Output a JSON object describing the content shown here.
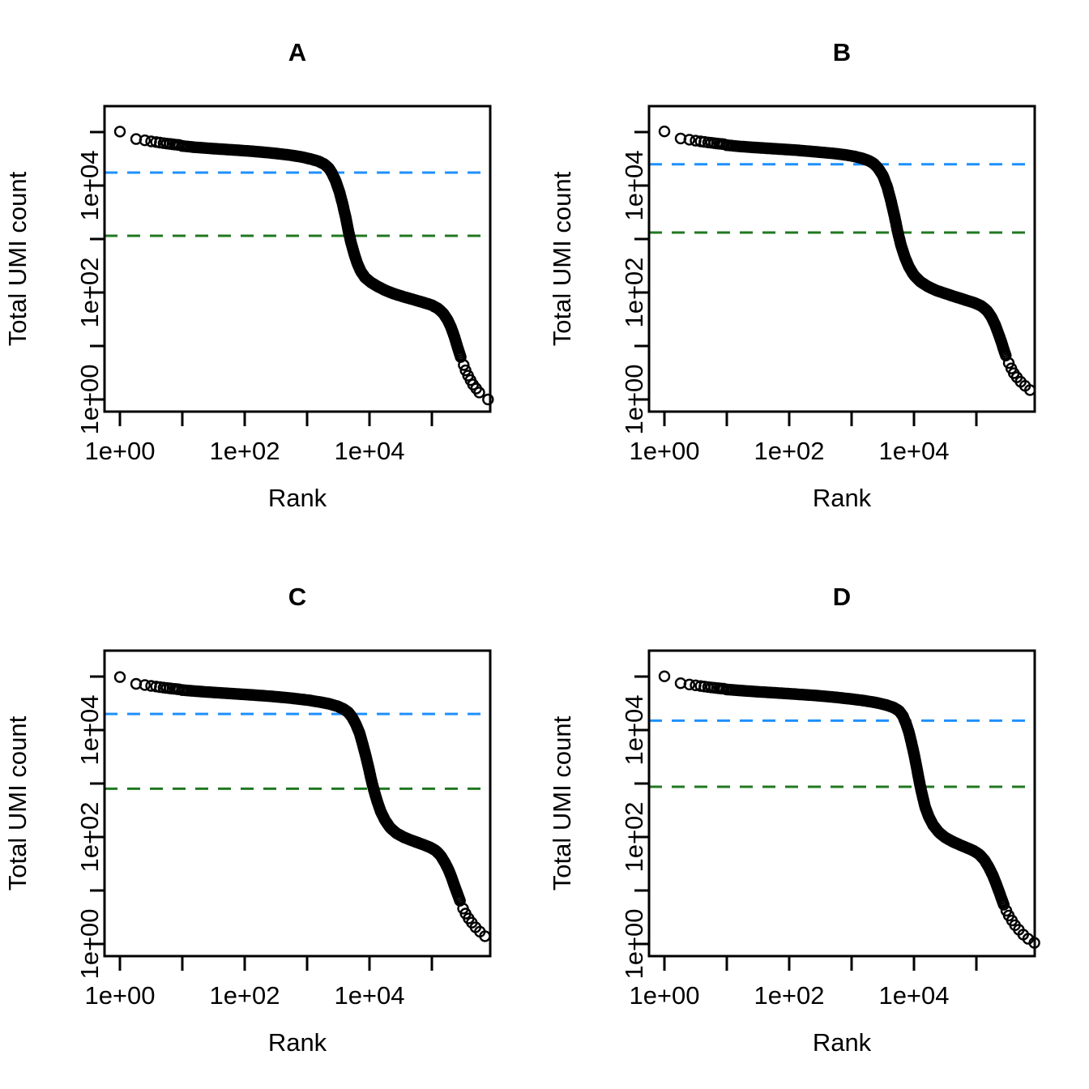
{
  "figure": {
    "description": "Four barcode rank plots (knee plots) of total UMI count versus barcode rank on log-log axes, panels A-D, each with a dashed knee line (blue) and dashed inflection line (green)."
  },
  "chart_data": {
    "type": "scatter",
    "scale": "log-log",
    "marker": "open-circle",
    "xlabel": "Rank",
    "ylabel": "Total UMI count",
    "x_ticks": [
      {
        "L": 0,
        "label": "1e+00"
      },
      {
        "L": 1,
        "label": ""
      },
      {
        "L": 2,
        "label": "1e+02"
      },
      {
        "L": 3,
        "label": ""
      },
      {
        "L": 4,
        "label": "1e+04"
      },
      {
        "L": 5,
        "label": ""
      }
    ],
    "y_ticks": [
      {
        "L": 5,
        "label": ""
      },
      {
        "L": 4,
        "label": "1e+04"
      },
      {
        "L": 3,
        "label": ""
      },
      {
        "L": 2,
        "label": "1e+02"
      },
      {
        "L": 1,
        "label": ""
      },
      {
        "L": 0,
        "label": "1e+00"
      }
    ],
    "style": {
      "knee_color": "#1E90FF",
      "inflection_color": "#217821",
      "point_color": "#000000",
      "knee_line_style": "dashed",
      "inflection_line_style": "dashed"
    },
    "panels": [
      {
        "label": "A",
        "knee": 17500,
        "inflection": 1150,
        "head": [
          [
            0,
            102000
          ],
          [
            0.26,
            74000
          ],
          [
            0.4,
            70000
          ],
          [
            0.5,
            67000
          ],
          [
            0.58,
            65000
          ],
          [
            0.64,
            63500
          ],
          [
            0.7,
            62000
          ],
          [
            0.75,
            61000
          ],
          [
            0.8,
            60000
          ],
          [
            0.84,
            59200
          ],
          [
            0.88,
            58500
          ],
          [
            0.92,
            57800
          ],
          [
            0.95,
            57200
          ]
        ],
        "body": [
          [
            1.0,
            55000
          ],
          [
            1.2,
            52000
          ],
          [
            1.5,
            49000
          ],
          [
            1.8,
            46500
          ],
          [
            2.1,
            44000
          ],
          [
            2.4,
            41000
          ],
          [
            2.7,
            37500
          ],
          [
            2.9,
            34500
          ],
          [
            3.05,
            31500
          ],
          [
            3.18,
            28500
          ],
          [
            3.28,
            25000
          ],
          [
            3.35,
            21000
          ],
          [
            3.4,
            17000
          ],
          [
            3.46,
            12000
          ],
          [
            3.52,
            7500
          ],
          [
            3.57,
            4500
          ],
          [
            3.62,
            2500
          ],
          [
            3.66,
            1450
          ],
          [
            3.7,
            900
          ],
          [
            3.75,
            550
          ],
          [
            3.8,
            360
          ],
          [
            3.86,
            250
          ],
          [
            3.93,
            190
          ],
          [
            4.02,
            155
          ],
          [
            4.13,
            130
          ],
          [
            4.25,
            110
          ],
          [
            4.4,
            94
          ],
          [
            4.55,
            83
          ],
          [
            4.7,
            74
          ],
          [
            4.85,
            66
          ],
          [
            5.0,
            58
          ],
          [
            5.1,
            50
          ],
          [
            5.18,
            41
          ],
          [
            5.25,
            31
          ],
          [
            5.31,
            22
          ],
          [
            5.36,
            15
          ],
          [
            5.4,
            10.5
          ],
          [
            5.44,
            7.5
          ],
          [
            5.47,
            5.8
          ]
        ],
        "tail": [
          [
            5.51,
            4.4
          ],
          [
            5.54,
            3.5
          ],
          [
            5.58,
            2.8
          ],
          [
            5.62,
            2.3
          ],
          [
            5.66,
            1.9
          ],
          [
            5.71,
            1.6
          ],
          [
            5.76,
            1.35
          ],
          [
            5.9,
            1.0
          ]
        ]
      },
      {
        "label": "B",
        "knee": 25000,
        "inflection": 1320,
        "head": [
          [
            0,
            103000
          ],
          [
            0.26,
            76000
          ],
          [
            0.4,
            72000
          ],
          [
            0.5,
            69000
          ],
          [
            0.58,
            67000
          ],
          [
            0.64,
            65500
          ],
          [
            0.7,
            64000
          ],
          [
            0.75,
            63000
          ],
          [
            0.8,
            62000
          ],
          [
            0.84,
            61200
          ],
          [
            0.88,
            60500
          ],
          [
            0.92,
            59800
          ],
          [
            0.95,
            59300
          ]
        ],
        "body": [
          [
            1.0,
            57000
          ],
          [
            1.2,
            54000
          ],
          [
            1.5,
            51000
          ],
          [
            1.8,
            48500
          ],
          [
            2.1,
            46000
          ],
          [
            2.4,
            43000
          ],
          [
            2.7,
            40000
          ],
          [
            2.9,
            37500
          ],
          [
            3.05,
            35000
          ],
          [
            3.18,
            32000
          ],
          [
            3.28,
            29000
          ],
          [
            3.35,
            26000
          ],
          [
            3.42,
            21500
          ],
          [
            3.5,
            15500
          ],
          [
            3.57,
            9500
          ],
          [
            3.63,
            5200
          ],
          [
            3.69,
            2600
          ],
          [
            3.74,
            1350
          ],
          [
            3.79,
            780
          ],
          [
            3.85,
            470
          ],
          [
            3.92,
            300
          ],
          [
            4.0,
            210
          ],
          [
            4.1,
            160
          ],
          [
            4.22,
            130
          ],
          [
            4.35,
            110
          ],
          [
            4.5,
            96
          ],
          [
            4.65,
            84
          ],
          [
            4.8,
            74
          ],
          [
            4.97,
            64
          ],
          [
            5.08,
            56
          ],
          [
            5.17,
            46
          ],
          [
            5.24,
            35
          ],
          [
            5.3,
            25
          ],
          [
            5.35,
            17.5
          ],
          [
            5.4,
            12
          ],
          [
            5.44,
            8.5
          ],
          [
            5.48,
            6.2
          ]
        ],
        "tail": [
          [
            5.52,
            4.8
          ],
          [
            5.56,
            3.8
          ],
          [
            5.6,
            3.1
          ],
          [
            5.65,
            2.6
          ],
          [
            5.71,
            2.15
          ],
          [
            5.78,
            1.8
          ],
          [
            5.86,
            1.5
          ]
        ]
      },
      {
        "label": "C",
        "knee": 20000,
        "inflection": 800,
        "head": [
          [
            0,
            98000
          ],
          [
            0.26,
            73000
          ],
          [
            0.4,
            69500
          ],
          [
            0.5,
            67000
          ],
          [
            0.58,
            65000
          ],
          [
            0.64,
            63500
          ],
          [
            0.7,
            62200
          ],
          [
            0.75,
            61200
          ],
          [
            0.8,
            60300
          ],
          [
            0.84,
            59500
          ],
          [
            0.88,
            58800
          ],
          [
            0.92,
            58200
          ],
          [
            0.95,
            57700
          ]
        ],
        "body": [
          [
            1.0,
            56000
          ],
          [
            1.2,
            53500
          ],
          [
            1.5,
            50500
          ],
          [
            1.8,
            48000
          ],
          [
            2.1,
            45500
          ],
          [
            2.4,
            43000
          ],
          [
            2.7,
            40000
          ],
          [
            3.0,
            36500
          ],
          [
            3.2,
            33500
          ],
          [
            3.35,
            31000
          ],
          [
            3.48,
            28000
          ],
          [
            3.58,
            25000
          ],
          [
            3.66,
            21500
          ],
          [
            3.72,
            17500
          ],
          [
            3.78,
            13000
          ],
          [
            3.84,
            8800
          ],
          [
            3.89,
            5500
          ],
          [
            3.94,
            3300
          ],
          [
            3.99,
            1900
          ],
          [
            4.03,
            1150
          ],
          [
            4.07,
            760
          ],
          [
            4.12,
            480
          ],
          [
            4.18,
            300
          ],
          [
            4.25,
            205
          ],
          [
            4.33,
            150
          ],
          [
            4.43,
            118
          ],
          [
            4.55,
            99
          ],
          [
            4.68,
            86
          ],
          [
            4.82,
            75
          ],
          [
            4.96,
            65
          ],
          [
            5.06,
            56
          ],
          [
            5.14,
            45
          ],
          [
            5.21,
            33
          ],
          [
            5.27,
            24
          ],
          [
            5.32,
            17
          ],
          [
            5.37,
            11.5
          ],
          [
            5.42,
            8.0
          ],
          [
            5.46,
            6.0
          ]
        ],
        "tail": [
          [
            5.5,
            4.6
          ],
          [
            5.54,
            3.7
          ],
          [
            5.59,
            3.0
          ],
          [
            5.64,
            2.5
          ],
          [
            5.7,
            2.05
          ],
          [
            5.77,
            1.7
          ],
          [
            5.85,
            1.4
          ]
        ]
      },
      {
        "label": "D",
        "knee": 15000,
        "inflection": 870,
        "head": [
          [
            0,
            101000
          ],
          [
            0.26,
            75000
          ],
          [
            0.4,
            71000
          ],
          [
            0.5,
            68500
          ],
          [
            0.58,
            66500
          ],
          [
            0.64,
            65000
          ],
          [
            0.7,
            63700
          ],
          [
            0.75,
            62700
          ],
          [
            0.8,
            61800
          ],
          [
            0.84,
            61000
          ],
          [
            0.88,
            60300
          ],
          [
            0.92,
            59700
          ],
          [
            0.95,
            59200
          ]
        ],
        "body": [
          [
            1.0,
            57500
          ],
          [
            1.2,
            55000
          ],
          [
            1.5,
            52000
          ],
          [
            1.8,
            49500
          ],
          [
            2.1,
            47000
          ],
          [
            2.4,
            44500
          ],
          [
            2.7,
            41500
          ],
          [
            3.0,
            38000
          ],
          [
            3.2,
            35500
          ],
          [
            3.4,
            32500
          ],
          [
            3.55,
            29500
          ],
          [
            3.67,
            26500
          ],
          [
            3.76,
            23000
          ],
          [
            3.82,
            18500
          ],
          [
            3.87,
            13500
          ],
          [
            3.92,
            9000
          ],
          [
            3.96,
            5800
          ],
          [
            4.0,
            3600
          ],
          [
            4.04,
            2100
          ],
          [
            4.07,
            1350
          ],
          [
            4.1,
            900
          ],
          [
            4.14,
            560
          ],
          [
            4.18,
            360
          ],
          [
            4.24,
            235
          ],
          [
            4.31,
            165
          ],
          [
            4.4,
            122
          ],
          [
            4.5,
            98
          ],
          [
            4.62,
            82
          ],
          [
            4.74,
            71
          ],
          [
            4.86,
            62
          ],
          [
            4.96,
            55
          ],
          [
            5.05,
            47
          ],
          [
            5.13,
            37
          ],
          [
            5.2,
            27
          ],
          [
            5.26,
            19.5
          ],
          [
            5.31,
            14
          ],
          [
            5.36,
            9.8
          ],
          [
            5.4,
            7.2
          ],
          [
            5.44,
            5.4
          ]
        ],
        "tail": [
          [
            5.48,
            4.2
          ],
          [
            5.52,
            3.4
          ],
          [
            5.57,
            2.75
          ],
          [
            5.62,
            2.25
          ],
          [
            5.68,
            1.85
          ],
          [
            5.75,
            1.5
          ],
          [
            5.83,
            1.25
          ],
          [
            5.93,
            1.05
          ]
        ]
      }
    ]
  }
}
